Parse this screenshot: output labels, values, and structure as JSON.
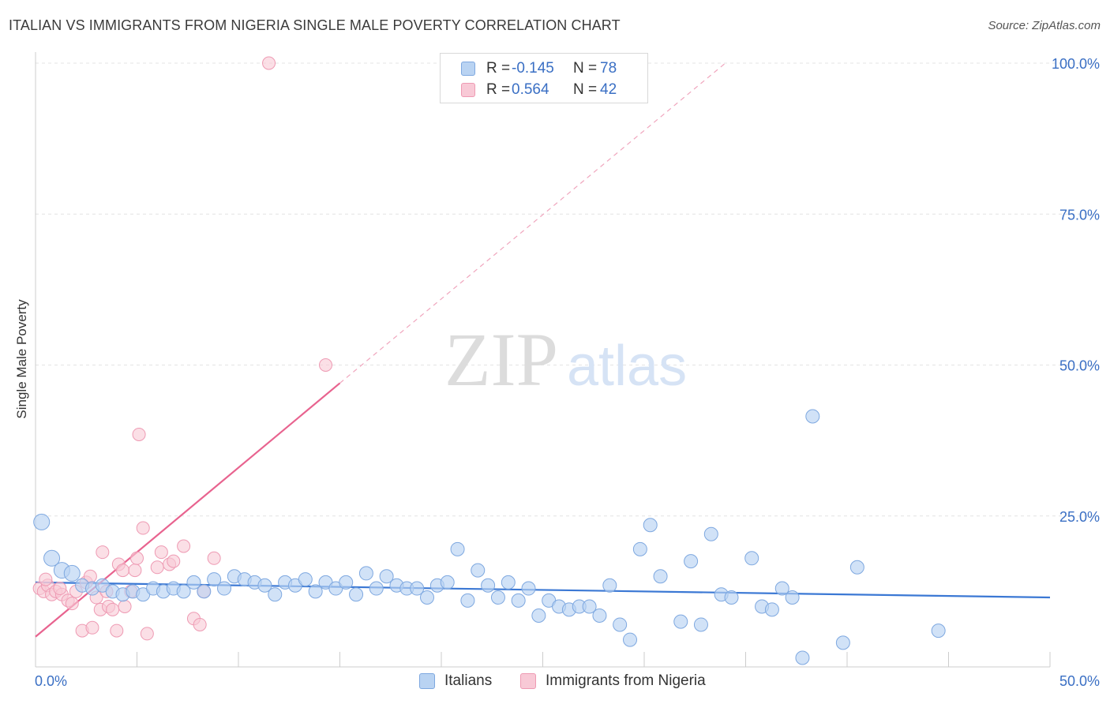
{
  "title": "ITALIAN VS IMMIGRANTS FROM NIGERIA SINGLE MALE POVERTY CORRELATION CHART",
  "source": "Source: ZipAtlas.com",
  "watermark": {
    "zip": "ZIP",
    "atlas": "atlas"
  },
  "legend": {
    "r_label": "R =",
    "n_label": "N =",
    "italians": {
      "r": "-0.145",
      "n": "78"
    },
    "nigeria": {
      "r": "0.564",
      "n": "42"
    }
  },
  "colors": {
    "italians_fill": "#b9d3f2",
    "italians_stroke": "#7ea8e0",
    "italians_line": "#3b78d4",
    "nigeria_fill": "#f8c9d6",
    "nigeria_stroke": "#ee9ab3",
    "nigeria_line": "#e8638f",
    "axis_text": "#3a6fc4"
  },
  "chart_data": {
    "type": "scatter",
    "title": "ITALIAN VS IMMIGRANTS FROM NIGERIA SINGLE MALE POVERTY CORRELATION CHART",
    "xlabel": "",
    "ylabel": "Single Male Poverty",
    "xlim": [
      0,
      50
    ],
    "ylim": [
      0,
      100
    ],
    "x_tick_labels": [
      "0.0%",
      "50.0%"
    ],
    "y_tick_labels": [
      "25.0%",
      "50.0%",
      "75.0%",
      "100.0%"
    ],
    "y_ticks": [
      25,
      50,
      75,
      100
    ],
    "grid": true,
    "legend_position": "bottom",
    "series": [
      {
        "name": "Italians",
        "points": [
          [
            0.3,
            24.0
          ],
          [
            0.8,
            18.0
          ],
          [
            1.3,
            16.0
          ],
          [
            1.8,
            15.5
          ],
          [
            2.3,
            13.5
          ],
          [
            2.8,
            13.0
          ],
          [
            3.3,
            13.5
          ],
          [
            3.8,
            12.5
          ],
          [
            4.3,
            12.0
          ],
          [
            4.8,
            12.5
          ],
          [
            5.3,
            12.0
          ],
          [
            5.8,
            13.0
          ],
          [
            6.3,
            12.5
          ],
          [
            6.8,
            13.0
          ],
          [
            7.3,
            12.5
          ],
          [
            7.8,
            14.0
          ],
          [
            8.3,
            12.5
          ],
          [
            8.8,
            14.5
          ],
          [
            9.3,
            13.0
          ],
          [
            9.8,
            15.0
          ],
          [
            10.3,
            14.5
          ],
          [
            10.8,
            14.0
          ],
          [
            11.3,
            13.5
          ],
          [
            11.8,
            12.0
          ],
          [
            12.3,
            14.0
          ],
          [
            12.8,
            13.5
          ],
          [
            13.3,
            14.5
          ],
          [
            13.8,
            12.5
          ],
          [
            14.3,
            14.0
          ],
          [
            14.8,
            13.0
          ],
          [
            15.3,
            14.0
          ],
          [
            15.8,
            12.0
          ],
          [
            16.3,
            15.5
          ],
          [
            16.8,
            13.0
          ],
          [
            17.3,
            15.0
          ],
          [
            17.8,
            13.5
          ],
          [
            18.3,
            13.0
          ],
          [
            18.8,
            13.0
          ],
          [
            19.3,
            11.5
          ],
          [
            19.8,
            13.5
          ],
          [
            20.3,
            14.0
          ],
          [
            20.8,
            19.5
          ],
          [
            21.3,
            11.0
          ],
          [
            21.8,
            16.0
          ],
          [
            22.3,
            13.5
          ],
          [
            22.8,
            11.5
          ],
          [
            23.3,
            14.0
          ],
          [
            23.8,
            11.0
          ],
          [
            24.3,
            13.0
          ],
          [
            24.8,
            8.5
          ],
          [
            25.3,
            11.0
          ],
          [
            25.8,
            10.0
          ],
          [
            26.3,
            9.5
          ],
          [
            26.8,
            10.0
          ],
          [
            27.3,
            10.0
          ],
          [
            27.8,
            8.5
          ],
          [
            28.3,
            13.5
          ],
          [
            28.8,
            7.0
          ],
          [
            29.3,
            4.5
          ],
          [
            29.8,
            19.5
          ],
          [
            30.3,
            23.5
          ],
          [
            30.8,
            15.0
          ],
          [
            31.8,
            7.5
          ],
          [
            32.3,
            17.5
          ],
          [
            32.8,
            7.0
          ],
          [
            33.3,
            22.0
          ],
          [
            33.8,
            12.0
          ],
          [
            34.3,
            11.5
          ],
          [
            35.3,
            18.0
          ],
          [
            35.8,
            10.0
          ],
          [
            36.3,
            9.5
          ],
          [
            36.8,
            13.0
          ],
          [
            37.3,
            11.5
          ],
          [
            37.8,
            1.5
          ],
          [
            38.3,
            41.5
          ],
          [
            39.8,
            4.0
          ],
          [
            40.5,
            16.5
          ],
          [
            44.5,
            6.0
          ]
        ]
      },
      {
        "name": "Immigrants from Nigeria",
        "points": [
          [
            0.2,
            13.0
          ],
          [
            0.4,
            12.5
          ],
          [
            0.6,
            13.5
          ],
          [
            0.8,
            12.0
          ],
          [
            1.0,
            12.5
          ],
          [
            1.3,
            12.0
          ],
          [
            1.6,
            11.0
          ],
          [
            1.8,
            10.5
          ],
          [
            2.0,
            12.5
          ],
          [
            2.3,
            6.0
          ],
          [
            2.5,
            14.0
          ],
          [
            2.7,
            15.0
          ],
          [
            2.8,
            6.5
          ],
          [
            3.0,
            11.5
          ],
          [
            3.2,
            9.5
          ],
          [
            3.3,
            19.0
          ],
          [
            3.5,
            12.5
          ],
          [
            3.6,
            10.0
          ],
          [
            3.8,
            9.5
          ],
          [
            4.0,
            6.0
          ],
          [
            4.1,
            17.0
          ],
          [
            4.3,
            16.0
          ],
          [
            4.4,
            10.0
          ],
          [
            4.7,
            12.5
          ],
          [
            4.9,
            16.0
          ],
          [
            5.0,
            18.0
          ],
          [
            5.1,
            38.5
          ],
          [
            5.3,
            23.0
          ],
          [
            5.5,
            5.5
          ],
          [
            6.0,
            16.5
          ],
          [
            6.2,
            19.0
          ],
          [
            6.6,
            17.0
          ],
          [
            6.8,
            17.5
          ],
          [
            7.3,
            20.0
          ],
          [
            7.8,
            8.0
          ],
          [
            8.1,
            7.0
          ],
          [
            8.3,
            12.5
          ],
          [
            8.8,
            18.0
          ],
          [
            11.5,
            100.0
          ],
          [
            14.3,
            50.0
          ],
          [
            1.2,
            13.0
          ],
          [
            0.5,
            14.5
          ]
        ]
      }
    ],
    "trendlines": [
      {
        "series": "Italians",
        "from": [
          0,
          14.0
        ],
        "to": [
          50,
          11.5
        ],
        "style": "solid"
      },
      {
        "series": "Immigrants from Nigeria",
        "from": [
          0,
          5.0
        ],
        "to": [
          15,
          47.0
        ],
        "style": "solid",
        "extended_to": [
          34,
          100.0
        ],
        "extended_style": "dashed"
      }
    ]
  },
  "bottom_legend": {
    "italians": "Italians",
    "nigeria": "Immigrants from Nigeria"
  }
}
